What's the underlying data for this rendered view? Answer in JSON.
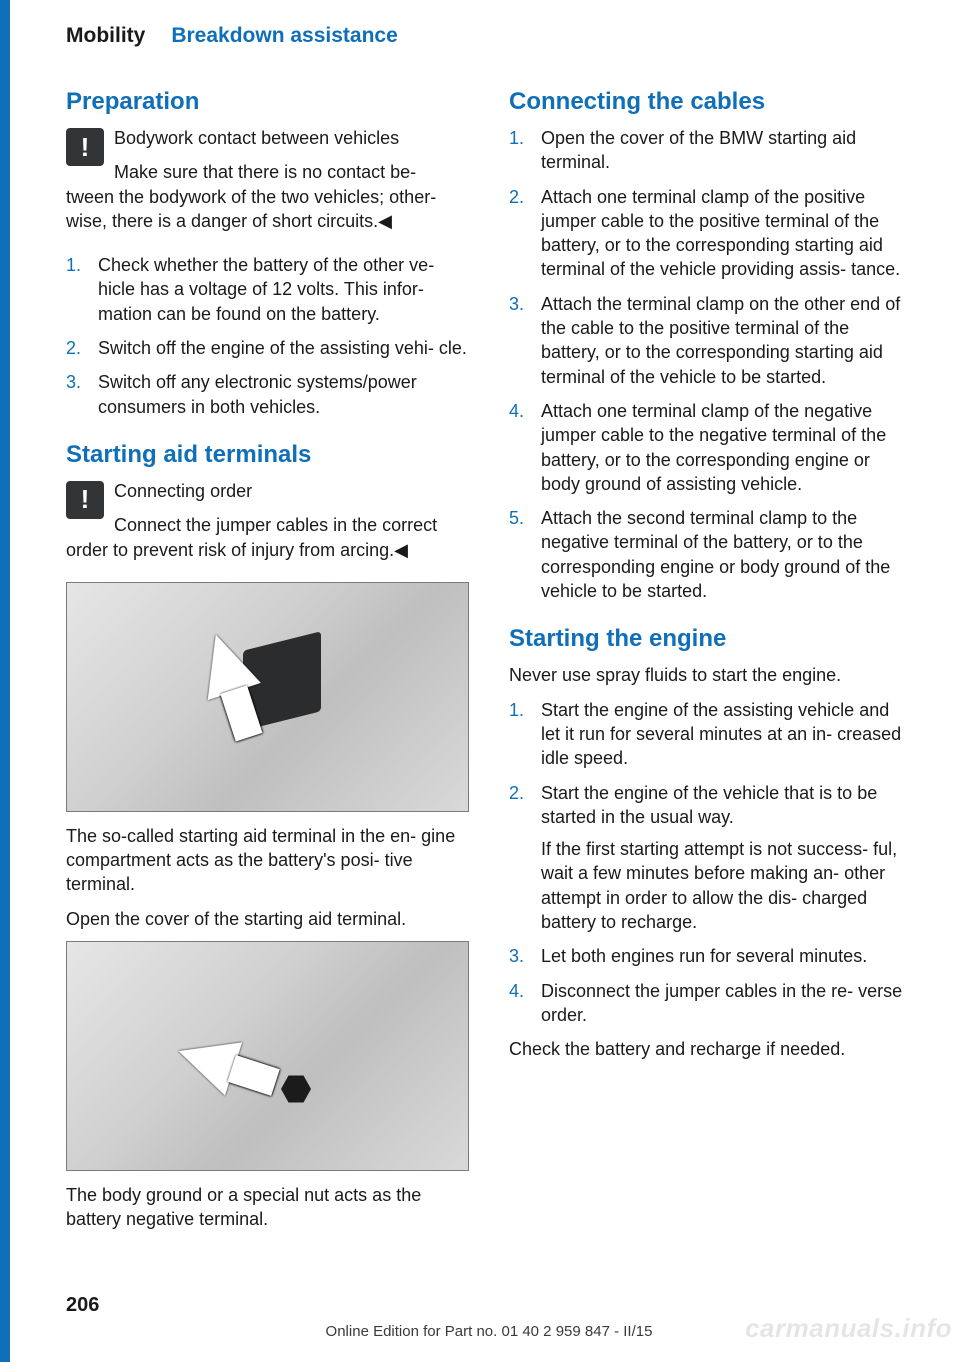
{
  "header": {
    "category": "Mobility",
    "subcategory": "Breakdown assistance"
  },
  "left": {
    "s1_title": "Preparation",
    "s1_warn_title": "Bodywork contact between vehicles",
    "s1_warn_body": "Make sure that there is no contact be‐ tween the bodywork of the two vehicles; other‐ wise, there is a danger of short circuits.◀",
    "s1_li1": "Check whether the battery of the other ve‐ hicle has a voltage of 12 volts. This infor‐ mation can be found on the battery.",
    "s1_li2": "Switch off the engine of the assisting vehi‐ cle.",
    "s1_li3": "Switch off any electronic systems/power consumers in both vehicles.",
    "s2_title": "Starting aid terminals",
    "s2_warn_title": "Connecting order",
    "s2_warn_body": "Connect the jumper cables in the correct order to prevent risk of injury from arcing.◀",
    "s2_fig1_caption1": "The so-called starting aid terminal in the en‐ gine compartment acts as the battery's posi‐ tive terminal.",
    "s2_fig1_caption2": "Open the cover of the starting aid terminal.",
    "s2_fig2_caption": "The body ground or a special nut acts as the battery negative terminal."
  },
  "right": {
    "s3_title": "Connecting the cables",
    "s3_li1": "Open the cover of the BMW starting aid terminal.",
    "s3_li2": "Attach one terminal clamp of the positive jumper cable to the positive terminal of the battery, or to the corresponding starting aid terminal of the vehicle providing assis‐ tance.",
    "s3_li3": "Attach the terminal clamp on the other end of the cable to the positive terminal of the battery, or to the corresponding starting aid terminal of the vehicle to be started.",
    "s3_li4": "Attach one terminal clamp of the negative jumper cable to the negative terminal of the battery, or to the corresponding engine or body ground of assisting vehicle.",
    "s3_li5": "Attach the second terminal clamp to the negative terminal of the battery, or to the corresponding engine or body ground of the vehicle to be started.",
    "s4_title": "Starting the engine",
    "s4_intro": "Never use spray fluids to start the engine.",
    "s4_li1": "Start the engine of the assisting vehicle and let it run for several minutes at an in‐ creased idle speed.",
    "s4_li2a": "Start the engine of the vehicle that is to be started in the usual way.",
    "s4_li2b": "If the first starting attempt is not success‐ ful, wait a few minutes before making an‐ other attempt in order to allow the dis‐ charged battery to recharge.",
    "s4_li3": "Let both engines run for several minutes.",
    "s4_li4": "Disconnect the jumper cables in the re‐ verse order.",
    "s4_outro": "Check the battery and recharge if needed."
  },
  "footer": {
    "page": "206",
    "online": "Online Edition for Part no. 01 40 2 959 847 - II/15",
    "watermark": "carmanuals.info"
  }
}
